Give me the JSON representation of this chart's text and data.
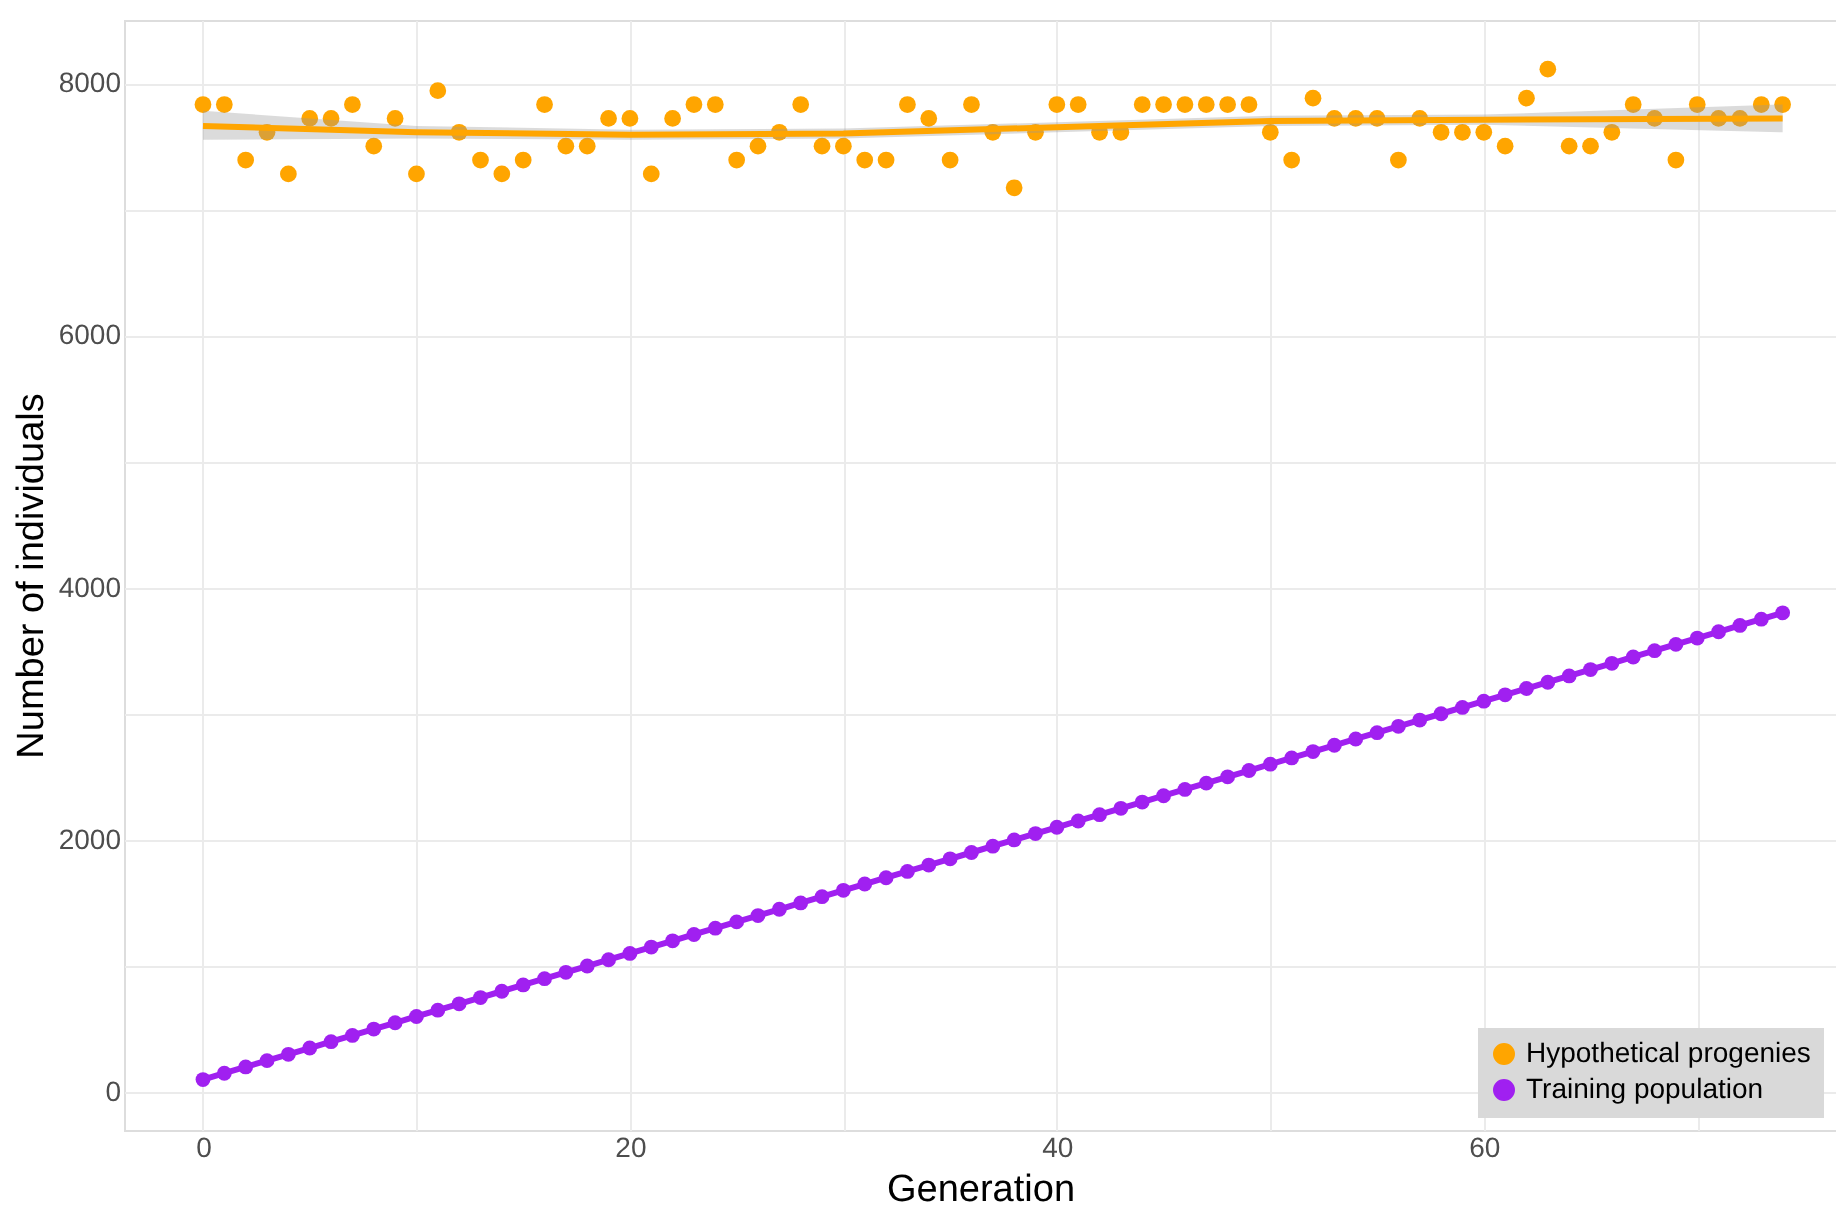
{
  "chart_data": {
    "type": "scatter",
    "xlabel": "Generation",
    "ylabel": "Number of individuals",
    "xlim": [
      -3.7,
      76.5
    ],
    "ylim": [
      -300,
      8500
    ],
    "xticks": [
      0,
      {
        "value": 10,
        "label": null
      },
      20,
      {
        "value": 30,
        "label": null
      },
      40,
      {
        "value": 50,
        "label": null
      },
      60,
      {
        "value": 70,
        "label": null
      }
    ],
    "yticks": [
      0,
      {
        "value": 1000,
        "label": null
      },
      2000,
      {
        "value": 3000,
        "label": null
      },
      4000,
      {
        "value": 5000,
        "label": null
      },
      6000,
      {
        "value": 7000,
        "label": null
      },
      8000
    ],
    "grid": true,
    "legend": "bottom right",
    "marker": "circle",
    "series": [
      {
        "name": "Hypothetical progenies",
        "color": "#ffa500",
        "x": [
          0,
          1,
          2,
          3,
          4,
          5,
          6,
          7,
          8,
          9,
          10,
          11,
          12,
          13,
          14,
          15,
          16,
          17,
          18,
          19,
          20,
          21,
          22,
          23,
          24,
          25,
          26,
          27,
          28,
          29,
          30,
          31,
          32,
          33,
          34,
          35,
          36,
          37,
          38,
          39,
          40,
          41,
          42,
          43,
          44,
          45,
          46,
          47,
          48,
          49,
          50,
          51,
          52,
          53,
          54,
          55,
          56,
          57,
          58,
          59,
          60,
          61,
          62,
          63,
          64,
          65,
          66,
          67,
          68,
          69,
          70,
          71,
          72,
          73,
          74
        ],
        "values": [
          7830,
          7830,
          7390,
          7610,
          7280,
          7720,
          7720,
          7830,
          7500,
          7720,
          7280,
          7940,
          7610,
          7390,
          7280,
          7390,
          7830,
          7500,
          7500,
          7720,
          7720,
          7280,
          7720,
          7830,
          7830,
          7390,
          7500,
          7610,
          7830,
          7500,
          7500,
          7390,
          7390,
          7830,
          7720,
          7390,
          7830,
          7610,
          7170,
          7610,
          7830,
          7830,
          7610,
          7610,
          7830,
          7830,
          7830,
          7830,
          7830,
          7830,
          7610,
          7390,
          7880,
          7720,
          7720,
          7720,
          7390,
          7720,
          7610,
          7610,
          7610,
          7500,
          7880,
          8110,
          7500,
          7500,
          7610,
          7830,
          7720,
          7390,
          7830,
          7720,
          7720,
          7830,
          7830
        ]
      },
      {
        "type": "line",
        "marker": "none",
        "color": "#ffa500",
        "x": [
          0,
          10,
          20,
          30,
          40,
          50,
          60,
          74
        ],
        "values": [
          7660,
          7610,
          7590,
          7600,
          7650,
          7700,
          7710,
          7720
        ],
        "lower": [
          7550,
          7560,
          7550,
          7560,
          7610,
          7660,
          7670,
          7610
        ],
        "upper": [
          7780,
          7660,
          7630,
          7640,
          7690,
          7740,
          7750,
          7830
        ]
      },
      {
        "name": "Training population",
        "type": "line",
        "color": "#a020f0",
        "x": [
          0,
          1,
          2,
          3,
          4,
          5,
          6,
          7,
          8,
          9,
          10,
          11,
          12,
          13,
          14,
          15,
          16,
          17,
          18,
          19,
          20,
          21,
          22,
          23,
          24,
          25,
          26,
          27,
          28,
          29,
          30,
          31,
          32,
          33,
          34,
          35,
          36,
          37,
          38,
          39,
          40,
          41,
          42,
          43,
          44,
          45,
          46,
          47,
          48,
          49,
          50,
          51,
          52,
          53,
          54,
          55,
          56,
          57,
          58,
          59,
          60,
          61,
          62,
          63,
          64,
          65,
          66,
          67,
          68,
          69,
          70,
          71,
          72,
          73,
          74
        ],
        "values": [
          100,
          150,
          200,
          250,
          300,
          350,
          400,
          450,
          500,
          550,
          600,
          650,
          700,
          750,
          800,
          850,
          900,
          950,
          1000,
          1050,
          1100,
          1150,
          1200,
          1250,
          1300,
          1350,
          1400,
          1450,
          1500,
          1550,
          1600,
          1650,
          1700,
          1750,
          1800,
          1850,
          1900,
          1950,
          2000,
          2050,
          2100,
          2150,
          2200,
          2250,
          2300,
          2350,
          2400,
          2450,
          2500,
          2550,
          2600,
          2650,
          2700,
          2750,
          2800,
          2850,
          2900,
          2950,
          3000,
          3050,
          3100,
          3150,
          3200,
          3250,
          3300,
          3350,
          3400,
          3450,
          3500,
          3550,
          3600,
          3650,
          3700,
          3750,
          3800
        ]
      }
    ]
  }
}
